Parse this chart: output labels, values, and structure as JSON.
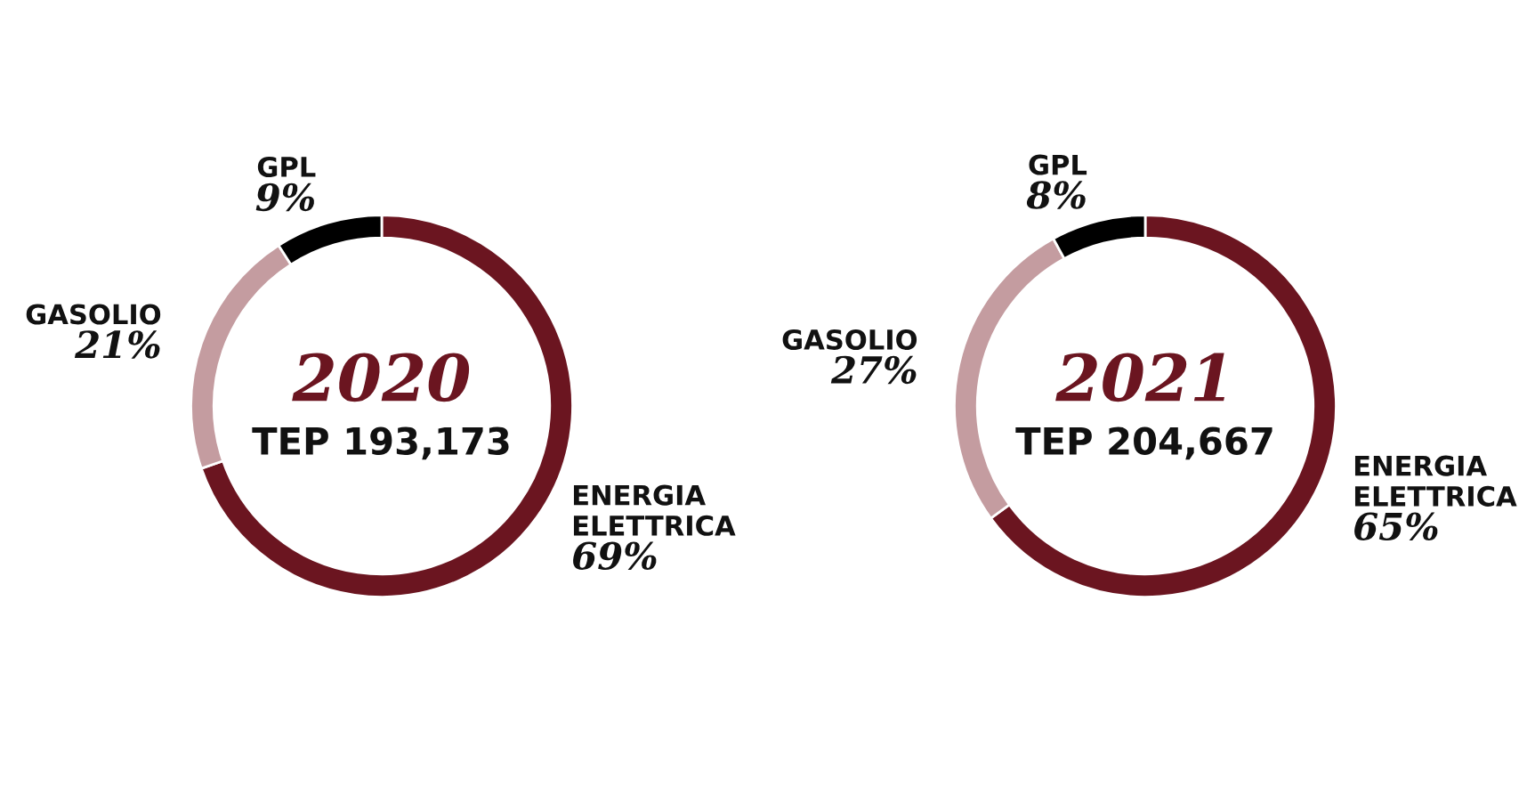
{
  "chart_data": [
    {
      "type": "donut",
      "title": "2020",
      "categories": [
        "ENERGIA\nELETTRICA",
        "GASOLIO",
        "GPL"
      ],
      "values": [
        69,
        21,
        9
      ],
      "value_labels": [
        "69%",
        "21%",
        "9%"
      ],
      "colors": [
        "#6b1520",
        "#c49ca0",
        "#000000"
      ],
      "annotations": [
        "TEP 193,173"
      ]
    },
    {
      "type": "donut",
      "title": "2021",
      "categories": [
        "ENERGIA\nELETTRICA",
        "GASOLIO",
        "GPL"
      ],
      "values": [
        65,
        27,
        8
      ],
      "value_labels": [
        "65%",
        "27%",
        "8%"
      ],
      "colors": [
        "#6b1520",
        "#c49ca0",
        "#000000"
      ],
      "annotations": [
        "TEP 204,667"
      ]
    }
  ]
}
